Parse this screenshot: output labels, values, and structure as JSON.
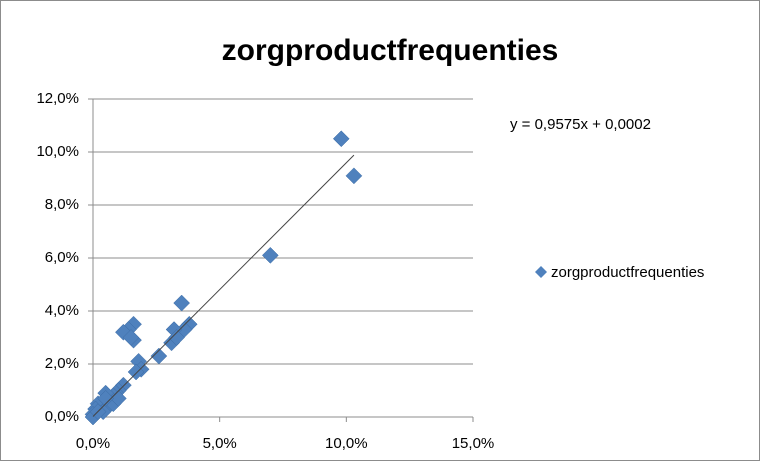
{
  "chart_data": {
    "type": "scatter",
    "title": "zorgproductfrequenties",
    "trendline_label": "y = 0,9575x + 0,0002",
    "trendline": {
      "slope": 0.9575,
      "intercept": 0.0002
    },
    "legend": "right",
    "grid": true,
    "xlim": [
      0,
      0.15
    ],
    "ylim": [
      0,
      0.12
    ],
    "xticks": [
      {
        "value": 0,
        "label": "0,0%"
      },
      {
        "value": 0.05,
        "label": "5,0%"
      },
      {
        "value": 0.1,
        "label": "10,0%"
      },
      {
        "value": 0.15,
        "label": "15,0%"
      }
    ],
    "yticks": [
      {
        "value": 0,
        "label": "0,0%"
      },
      {
        "value": 0.02,
        "label": "2,0%"
      },
      {
        "value": 0.04,
        "label": "4,0%"
      },
      {
        "value": 0.06,
        "label": "6,0%"
      },
      {
        "value": 0.08,
        "label": "8,0%"
      },
      {
        "value": 0.1,
        "label": "10,0%"
      },
      {
        "value": 0.12,
        "label": "12,0%"
      }
    ],
    "series": [
      {
        "name": "zorgproductfrequenties",
        "color": "#4f81bd",
        "x": [
          0.098,
          0.103,
          0.07,
          0.035,
          0.038,
          0.036,
          0.032,
          0.031,
          0.033,
          0.026,
          0.018,
          0.019,
          0.017,
          0.016,
          0.014,
          0.012,
          0.016,
          0.015,
          0.012,
          0.01,
          0.009,
          0.008,
          0.007,
          0.006,
          0.005,
          0.004,
          0.003,
          0.002,
          0.001,
          0.0,
          0.0,
          0.006,
          0.004,
          0.002,
          0.008,
          0.01,
          0.005
        ],
        "values": [
          0.105,
          0.091,
          0.061,
          0.043,
          0.035,
          0.033,
          0.033,
          0.028,
          0.03,
          0.023,
          0.021,
          0.018,
          0.017,
          0.035,
          0.033,
          0.032,
          0.029,
          0.03,
          0.012,
          0.01,
          0.009,
          0.008,
          0.007,
          0.006,
          0.009,
          0.005,
          0.004,
          0.005,
          0.003,
          0.001,
          0.0,
          0.004,
          0.002,
          0.002,
          0.005,
          0.007,
          0.007
        ]
      }
    ]
  }
}
